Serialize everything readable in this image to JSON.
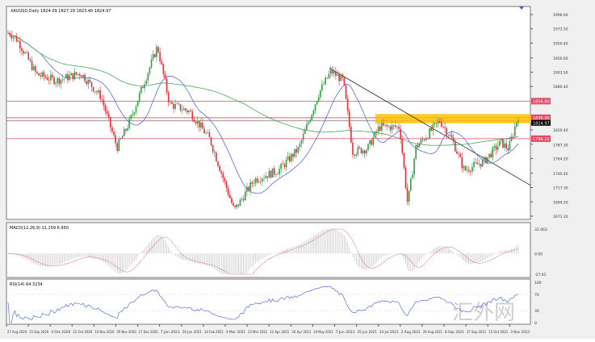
{
  "chart_data": {
    "type": "candlestick",
    "title": "XAUUSD,Daily  1824.09 1827.29 1823.40 1824.97",
    "symbol": "XAUUSD",
    "timeframe": "Daily",
    "last_ohlc": {
      "open": 1824.09,
      "high": 1827.29,
      "low": 1823.4,
      "close": 1824.97
    },
    "ylim": [
      1671.1,
      1996.6
    ],
    "price_ticks": [
      "1996.60",
      "1973.50",
      "1950.40",
      "1926.60",
      "1903.50",
      "1880.40",
      "1810.40",
      "1787.30",
      "1764.20",
      "1740.40",
      "1717.30",
      "1694.20",
      "1671.10"
    ],
    "x_ticks": [
      "27 Aug 2020",
      "15 Sep 2020",
      "4 Oct 2020",
      "22 Oct 2020",
      "10 Nov 2020",
      "29 Nov 2020",
      "17 Dec 2020",
      "7 Jan 2021",
      "26 Jan 2021",
      "14 Feb 2021",
      "4 Mar 2021",
      "23 Mar 2021",
      "12 Apr 2021",
      "30 Apr 2021",
      "19 May 2021",
      "7 Jun 2021",
      "25 Jun 2021",
      "14 Jul 2021",
      "2 Aug 2021",
      "20 Aug 2021",
      "8 Sep 2021",
      "27 Sep 2021",
      "15 Oct 2021",
      "3 Nov 2021"
    ],
    "approx_close_path": [
      {
        "date": "27 Aug 2020",
        "close": 1967
      },
      {
        "date": "2 Sep 2020",
        "close": 1955
      },
      {
        "date": "15 Sep 2020",
        "close": 1900
      },
      {
        "date": "4 Oct 2020",
        "close": 1890
      },
      {
        "date": "22 Oct 2020",
        "close": 1902
      },
      {
        "date": "10 Nov 2020",
        "close": 1864
      },
      {
        "date": "25 Nov 2020",
        "close": 1782
      },
      {
        "date": "29 Nov 2020",
        "close": 1822
      },
      {
        "date": "5 Jan 2021",
        "close": 1945
      },
      {
        "date": "7 Jan 2021",
        "close": 1852
      },
      {
        "date": "26 Jan 2021",
        "close": 1840
      },
      {
        "date": "14 Feb 2021",
        "close": 1795
      },
      {
        "date": "4 Mar 2021",
        "close": 1700
      },
      {
        "date": "8 Mar 2021",
        "close": 1680
      },
      {
        "date": "23 Mar 2021",
        "close": 1730
      },
      {
        "date": "12 Apr 2021",
        "close": 1745
      },
      {
        "date": "30 Apr 2021",
        "close": 1780
      },
      {
        "date": "19 May 2021",
        "close": 1870
      },
      {
        "date": "1 Jun 2021",
        "close": 1905
      },
      {
        "date": "7 Jun 2021",
        "close": 1890
      },
      {
        "date": "17 Jun 2021",
        "close": 1775
      },
      {
        "date": "25 Jun 2021",
        "close": 1780
      },
      {
        "date": "14 Jul 2021",
        "close": 1815
      },
      {
        "date": "30 Jul 2021",
        "close": 1815
      },
      {
        "date": "9 Aug 2021",
        "close": 1690
      },
      {
        "date": "20 Aug 2021",
        "close": 1782
      },
      {
        "date": "3 Sep 2021",
        "close": 1825
      },
      {
        "date": "8 Sep 2021",
        "close": 1795
      },
      {
        "date": "27 Sep 2021",
        "close": 1745
      },
      {
        "date": "10 Oct 2021",
        "close": 1760
      },
      {
        "date": "20 Oct 2021",
        "close": 1790
      },
      {
        "date": "28 Oct 2021",
        "close": 1780
      },
      {
        "date": "3 Nov 2021",
        "close": 1825
      }
    ],
    "horizontal_levels": [
      {
        "price": "1856.80",
        "color": "#e8485f"
      },
      {
        "price": "1830.00",
        "color": "#e8485f"
      },
      {
        "price": "1796.22",
        "color": "#e8485f"
      }
    ],
    "current_price": {
      "price": "1824.97",
      "color": "#000000"
    },
    "resistance_zone": {
      "from": 1821,
      "to": 1836,
      "color": "#ffc000"
    },
    "trendline": {
      "from": {
        "date": "1 Jun 2021",
        "price": 1910
      },
      "to": {
        "date": "3 Nov 2021+",
        "price": 1721
      }
    },
    "moving_averages": [
      {
        "color": "#3b5bdb",
        "type": "short"
      },
      {
        "color": "#2e9e47",
        "type": "long"
      }
    ],
    "colors": {
      "bull": "#2ea043",
      "bear": "#e0303a",
      "grid": "#ffffff"
    },
    "macd": {
      "label": "MACD(12,26,9) 11.159 6.950",
      "ticks": [
        "32.463",
        "0.00",
        "-27.61"
      ]
    },
    "rsi": {
      "label": "RSI(14) 64.3234",
      "ticks": [
        "100",
        "70",
        "30",
        "0"
      ]
    },
    "watermark": "汇外网"
  }
}
